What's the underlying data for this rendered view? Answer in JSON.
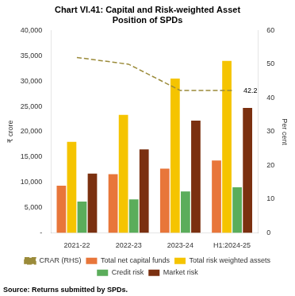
{
  "chart_data": {
    "type": "bar",
    "title": "Chart VI.41: Capital and Risk-weighted Asset\nPosition of SPDs",
    "categories": [
      "2021-22",
      "2022-23",
      "2023-24",
      "H1:2024-25"
    ],
    "series": [
      {
        "name": "Total net capital funds",
        "color": "#E8763A",
        "values": [
          9300,
          11600,
          12700,
          14300
        ]
      },
      {
        "name": "Total risk weighted assets",
        "color": "#F5C400",
        "values": [
          18000,
          23300,
          30500,
          34000
        ]
      },
      {
        "name": "Credit risk",
        "color": "#5BAD5B",
        "values": [
          6200,
          6600,
          8200,
          9000
        ]
      },
      {
        "name": "Market risk",
        "color": "#7B3010",
        "values": [
          11700,
          16500,
          22200,
          24700
        ]
      },
      {
        "name": "CRAR (RHS)",
        "color": "#9B8B3A",
        "values": [
          52,
          50,
          42.2,
          42.2
        ],
        "type": "line",
        "axis": "y2",
        "line_style": "dashed",
        "marker": "none"
      }
    ],
    "ylabel": "₹ crore",
    "y2label": "Per cent",
    "ylim": [
      0,
      40000
    ],
    "yticks": [
      {
        "value": 0,
        "label": "-"
      },
      {
        "value": 5000,
        "label": "5,000"
      },
      {
        "value": 10000,
        "label": "10,000"
      },
      {
        "value": 15000,
        "label": "15,000"
      },
      {
        "value": 20000,
        "label": "20,000"
      },
      {
        "value": 25000,
        "label": "25,000"
      },
      {
        "value": 30000,
        "label": "30,000"
      },
      {
        "value": 35000,
        "label": "35,000"
      },
      {
        "value": 40000,
        "label": "40,000"
      }
    ],
    "y2lim": [
      0,
      60
    ],
    "y2ticks": [
      0,
      10,
      20,
      30,
      40,
      50,
      60
    ],
    "annotations": [
      {
        "text": "42.2",
        "x": "H1:2024-25",
        "y": 42.2,
        "axis": "y2"
      }
    ],
    "source": "Source: Returns submitted by SPDs.",
    "legend": "bottom",
    "grid": false
  }
}
